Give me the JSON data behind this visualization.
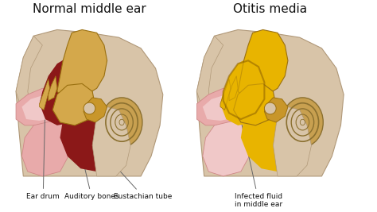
{
  "bg_color": "#ffffff",
  "title_left": "Normal middle ear",
  "title_right": "Otitis media",
  "title_fontsize": 11,
  "label_fontsize": 6.5,
  "labels_left": [
    "Ear drum",
    "Auditory bones",
    "Eustachian tube"
  ],
  "label_right": "Infected fluid\nin middle ear",
  "bone_color": "#D4A84B",
  "bone_color2": "#C8962A",
  "bone_edge": "#9A7010",
  "tissue_color": "#D8C4A8",
  "tissue_dark": "#C4AA88",
  "tissue_edge": "#B09878",
  "dark_red": "#8B1818",
  "medium_red": "#AA3333",
  "pink_canal": "#E8AAAA",
  "pink_dark": "#D08888",
  "pink_light": "#F0C8C8",
  "infected_yellow": "#D4960A",
  "infected_bright": "#E8B400",
  "infected_dark": "#8B6000",
  "cochlea_color": "#C8A050",
  "cochlea_light": "#E0C080",
  "cochlea_edge": "#8B7030",
  "line_color": "#666666",
  "text_color": "#111111",
  "white": "#FFFFFF",
  "cream": "#F0E8D8"
}
